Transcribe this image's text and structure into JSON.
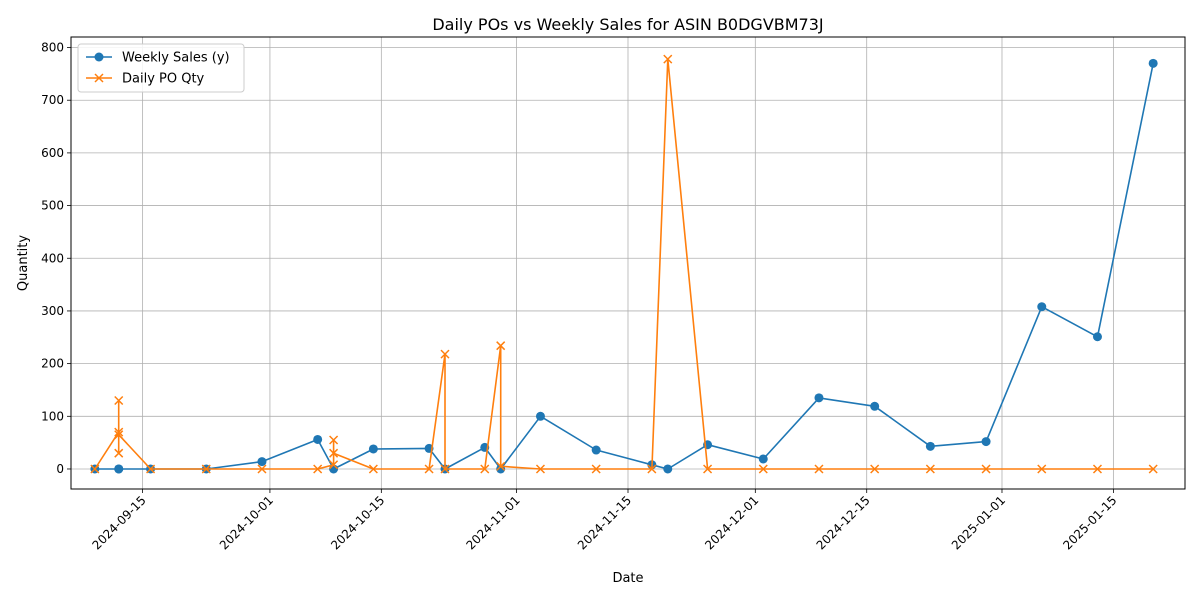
{
  "chart_data": {
    "type": "line",
    "title": "Daily POs vs Weekly Sales for ASIN B0DGVBM73J",
    "xlabel": "Date",
    "ylabel": "Quantity",
    "xlim": [
      "2024-09-06",
      "2025-01-24"
    ],
    "ylim": [
      -38,
      820
    ],
    "x_ticks": [
      "2024-09-15",
      "2024-10-01",
      "2024-10-15",
      "2024-11-01",
      "2024-11-15",
      "2024-12-01",
      "2024-12-15",
      "2025-01-01",
      "2025-01-15"
    ],
    "y_ticks": [
      0,
      100,
      200,
      300,
      400,
      500,
      600,
      700,
      800
    ],
    "grid": true,
    "legend_position": "upper left",
    "series": [
      {
        "name": "Weekly Sales (y)",
        "color": "#1f77b4",
        "marker": "circle",
        "points": [
          [
            "2024-09-09",
            0
          ],
          [
            "2024-09-12",
            0
          ],
          [
            "2024-09-12",
            0
          ],
          [
            "2024-09-16",
            0
          ],
          [
            "2024-09-23",
            0
          ],
          [
            "2024-09-30",
            14
          ],
          [
            "2024-10-07",
            56
          ],
          [
            "2024-10-09",
            0
          ],
          [
            "2024-10-14",
            38
          ],
          [
            "2024-10-21",
            39
          ],
          [
            "2024-10-23",
            0
          ],
          [
            "2024-10-28",
            41
          ],
          [
            "2024-10-30",
            0
          ],
          [
            "2024-11-04",
            100
          ],
          [
            "2024-11-11",
            36
          ],
          [
            "2024-11-18",
            8
          ],
          [
            "2024-11-20",
            0
          ],
          [
            "2024-11-25",
            46
          ],
          [
            "2024-12-02",
            19
          ],
          [
            "2024-12-09",
            135
          ],
          [
            "2024-12-16",
            119
          ],
          [
            "2024-12-23",
            43
          ],
          [
            "2024-12-30",
            52
          ],
          [
            "2025-01-06",
            308
          ],
          [
            "2025-01-13",
            251
          ],
          [
            "2025-01-20",
            770
          ]
        ]
      },
      {
        "name": "Daily PO Qty",
        "color": "#ff7f0e",
        "marker": "x",
        "points": [
          [
            "2024-09-09",
            0
          ],
          [
            "2024-09-12",
            70
          ],
          [
            "2024-09-12",
            130
          ],
          [
            "2024-09-12",
            30
          ],
          [
            "2024-09-12",
            65
          ],
          [
            "2024-09-16",
            0
          ],
          [
            "2024-09-23",
            0
          ],
          [
            "2024-09-30",
            0
          ],
          [
            "2024-10-07",
            0
          ],
          [
            "2024-10-09",
            8
          ],
          [
            "2024-10-09",
            55
          ],
          [
            "2024-10-09",
            30
          ],
          [
            "2024-10-14",
            0
          ],
          [
            "2024-10-21",
            0
          ],
          [
            "2024-10-23",
            218
          ],
          [
            "2024-10-23",
            0
          ],
          [
            "2024-10-28",
            0
          ],
          [
            "2024-10-30",
            234
          ],
          [
            "2024-10-30",
            5
          ],
          [
            "2024-11-04",
            0
          ],
          [
            "2024-11-11",
            0
          ],
          [
            "2024-11-18",
            0
          ],
          [
            "2024-11-20",
            778
          ],
          [
            "2024-11-25",
            0
          ],
          [
            "2024-12-02",
            0
          ],
          [
            "2024-12-09",
            0
          ],
          [
            "2024-12-16",
            0
          ],
          [
            "2024-12-23",
            0
          ],
          [
            "2024-12-30",
            0
          ],
          [
            "2025-01-06",
            0
          ],
          [
            "2025-01-13",
            0
          ],
          [
            "2025-01-20",
            0
          ]
        ]
      }
    ]
  }
}
